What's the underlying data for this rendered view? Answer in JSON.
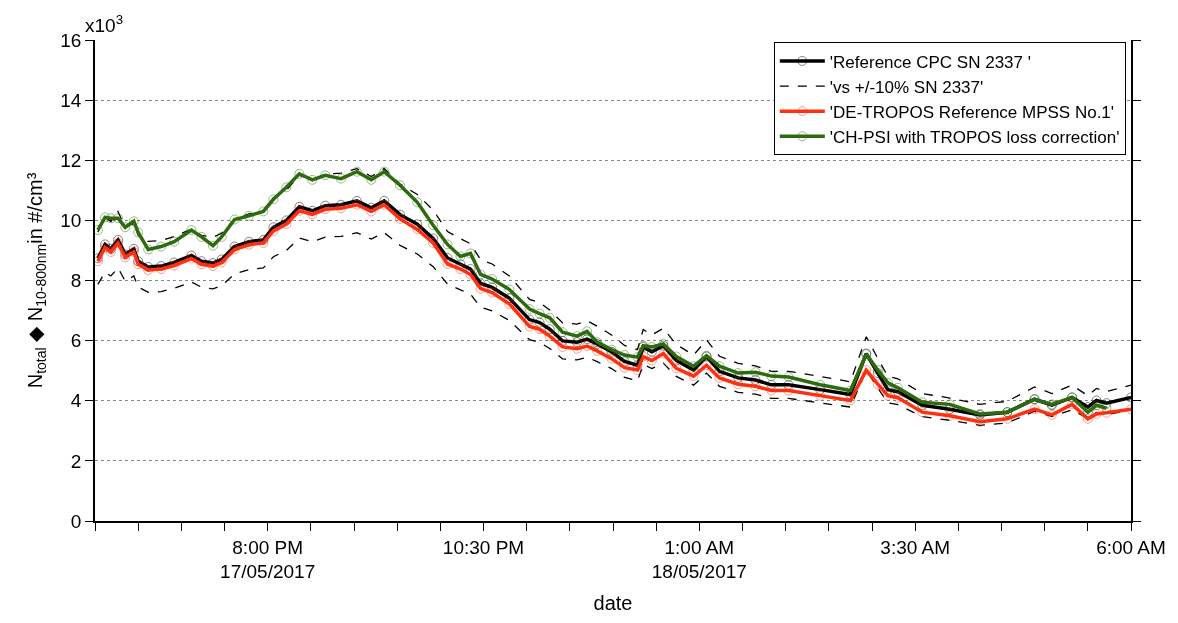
{
  "chart_data": {
    "type": "line",
    "xlabel": "date",
    "ylabel": "N$_{total}$ ◆ N$_{10-800nm}$in #/cm³",
    "x": [
      "2017-05-17T18:02",
      "2017-05-17T18:07",
      "2017-05-17T18:11",
      "2017-05-17T18:16",
      "2017-05-17T18:21",
      "2017-05-17T18:27",
      "2017-05-17T18:30",
      "2017-05-17T18:37",
      "2017-05-17T18:46",
      "2017-05-17T18:55",
      "2017-05-17T19:07",
      "2017-05-17T19:14",
      "2017-05-17T19:22",
      "2017-05-17T19:28",
      "2017-05-17T19:37",
      "2017-05-17T19:47",
      "2017-05-17T19:57",
      "2017-05-17T20:04",
      "2017-05-17T20:13",
      "2017-05-17T20:22",
      "2017-05-17T20:31",
      "2017-05-17T20:40",
      "2017-05-17T20:51",
      "2017-05-17T21:02",
      "2017-05-17T21:12",
      "2017-05-17T21:21",
      "2017-05-17T21:32",
      "2017-05-17T21:44",
      "2017-05-17T21:55",
      "2017-05-17T22:05",
      "2017-05-17T22:14",
      "2017-05-17T22:21",
      "2017-05-17T22:28",
      "2017-05-17T22:36",
      "2017-05-17T22:48",
      "2017-05-17T23:02",
      "2017-05-17T23:09",
      "2017-05-17T23:16",
      "2017-05-17T23:25",
      "2017-05-17T23:35",
      "2017-05-17T23:42",
      "2017-05-17T23:49",
      "2017-05-17T23:59",
      "2017-05-18T00:08",
      "2017-05-18T00:17",
      "2017-05-18T00:21",
      "2017-05-18T00:27",
      "2017-05-18T00:35",
      "2017-05-18T00:44",
      "2017-05-18T00:56",
      "2017-05-18T01:05",
      "2017-05-18T01:14",
      "2017-05-18T01:27",
      "2017-05-18T01:39",
      "2017-05-18T01:50",
      "2017-05-18T02:02",
      "2017-05-18T02:24",
      "2017-05-18T02:45",
      "2017-05-18T02:56",
      "2017-05-18T03:04",
      "2017-05-18T03:11",
      "2017-05-18T03:18",
      "2017-05-18T03:35",
      "2017-05-18T03:54",
      "2017-05-18T04:15",
      "2017-05-18T04:34",
      "2017-05-18T04:53",
      "2017-05-18T05:05",
      "2017-05-18T05:19",
      "2017-05-18T05:30",
      "2017-05-18T05:36",
      "2017-05-18T05:43",
      "2017-05-18T06:00"
    ],
    "series": [
      {
        "name": "'Reference CPC SN 2337 '",
        "color": "#000000",
        "line_style": "solid",
        "marker": "circle",
        "values": [
          8.74,
          9.2,
          9.05,
          9.35,
          8.87,
          9.05,
          8.64,
          8.45,
          8.48,
          8.6,
          8.83,
          8.64,
          8.58,
          8.7,
          9.13,
          9.29,
          9.35,
          9.77,
          10.0,
          10.45,
          10.32,
          10.49,
          10.52,
          10.65,
          10.42,
          10.65,
          10.19,
          9.87,
          9.4,
          8.75,
          8.54,
          8.38,
          7.9,
          7.77,
          7.41,
          6.7,
          6.6,
          6.38,
          5.99,
          5.95,
          6.05,
          5.89,
          5.63,
          5.31,
          5.18,
          5.79,
          5.63,
          5.83,
          5.34,
          5.02,
          5.47,
          4.98,
          4.76,
          4.69,
          4.53,
          4.53,
          4.37,
          4.21,
          5.57,
          4.92,
          4.37,
          4.3,
          3.85,
          3.72,
          3.53,
          3.62,
          4.05,
          3.85,
          4.11,
          3.79,
          4.01,
          3.92,
          4.11
        ]
      },
      {
        "name": "'vs +/-10% SN 2337'",
        "color": "#000000",
        "line_style": "dashed",
        "marker": "none",
        "values": [
          9.61,
          10.12,
          9.96,
          10.29,
          9.76,
          9.96,
          9.5,
          9.3,
          9.33,
          9.46,
          9.71,
          9.5,
          9.44,
          9.57,
          10.04,
          10.22,
          10.29,
          10.75,
          11.0,
          11.5,
          11.35,
          11.54,
          11.57,
          11.72,
          11.46,
          11.72,
          11.21,
          10.86,
          10.34,
          9.63,
          9.39,
          9.22,
          8.69,
          8.55,
          8.15,
          7.37,
          7.26,
          7.02,
          6.59,
          6.55,
          6.66,
          6.48,
          6.19,
          5.84,
          5.7,
          6.37,
          6.19,
          6.41,
          5.87,
          5.52,
          6.02,
          5.48,
          5.24,
          5.16,
          4.98,
          4.98,
          4.81,
          4.63,
          6.13,
          5.41,
          4.81,
          4.73,
          4.24,
          4.09,
          3.88,
          3.98,
          4.46,
          4.24,
          4.52,
          4.17,
          4.41,
          4.31,
          4.52
        ]
      },
      {
        "color": "#000000",
        "line_style": "dashed",
        "marker": "none",
        "values": [
          7.87,
          8.28,
          8.15,
          8.42,
          7.98,
          8.15,
          7.78,
          7.61,
          7.63,
          7.74,
          7.95,
          7.78,
          7.72,
          7.83,
          8.22,
          8.36,
          8.42,
          8.79,
          9.0,
          9.41,
          9.29,
          9.44,
          9.47,
          9.59,
          9.38,
          9.59,
          9.17,
          8.88,
          8.46,
          7.88,
          7.69,
          7.54,
          7.11,
          6.99,
          6.67,
          6.03,
          5.94,
          5.74,
          5.39,
          5.36,
          5.45,
          5.3,
          5.07,
          4.78,
          4.66,
          5.21,
          5.07,
          5.25,
          4.81,
          4.52,
          4.92,
          4.48,
          4.28,
          4.22,
          4.08,
          4.08,
          3.93,
          3.79,
          5.01,
          4.43,
          3.93,
          3.87,
          3.47,
          3.35,
          3.18,
          3.26,
          3.65,
          3.47,
          3.7,
          3.41,
          3.61,
          3.53,
          3.7
        ]
      },
      {
        "name": "'DE-TROPOS Reference MPSS No.1'",
        "color": "#ff3010",
        "line_style": "solid",
        "marker": "circle",
        "values": [
          8.64,
          9.1,
          8.95,
          9.25,
          8.77,
          8.95,
          8.54,
          8.35,
          8.38,
          8.5,
          8.73,
          8.54,
          8.48,
          8.6,
          9.03,
          9.19,
          9.25,
          9.65,
          9.88,
          10.32,
          10.2,
          10.37,
          10.4,
          10.52,
          10.3,
          10.52,
          10.05,
          9.7,
          9.25,
          8.55,
          8.38,
          8.2,
          7.73,
          7.6,
          7.22,
          6.47,
          6.38,
          6.15,
          5.79,
          5.73,
          5.82,
          5.66,
          5.4,
          5.1,
          5.02,
          5.47,
          5.34,
          5.57,
          5.08,
          4.82,
          5.18,
          4.76,
          4.55,
          4.48,
          4.34,
          4.34,
          4.17,
          4.01,
          5.02,
          4.55,
          4.17,
          4.1,
          3.62,
          3.5,
          3.3,
          3.4,
          3.72,
          3.53,
          3.88,
          3.4,
          3.56,
          3.6,
          3.72
        ]
      },
      {
        "name": "'CH-PSI with TROPOS loss correction'",
        "color": "#2e6b0e",
        "line_style": "solid",
        "marker": "circle",
        "values": [
          9.68,
          10.1,
          10.07,
          10.07,
          9.77,
          9.97,
          9.6,
          9.03,
          9.13,
          9.29,
          9.68,
          9.45,
          9.16,
          9.45,
          10.03,
          10.15,
          10.3,
          10.7,
          11.1,
          11.55,
          11.35,
          11.5,
          11.39,
          11.62,
          11.35,
          11.62,
          11.17,
          10.6,
          9.84,
          9.2,
          8.8,
          8.9,
          8.2,
          8.05,
          7.7,
          7.05,
          6.9,
          6.76,
          6.28,
          6.15,
          6.31,
          5.95,
          5.7,
          5.52,
          5.45,
          5.83,
          5.79,
          5.89,
          5.47,
          5.15,
          5.5,
          5.15,
          4.92,
          4.95,
          4.82,
          4.79,
          4.53,
          4.34,
          5.55,
          5.02,
          4.6,
          4.43,
          3.95,
          3.88,
          3.56,
          3.62,
          4.05,
          3.88,
          4.11,
          3.62,
          3.85,
          3.75,
          null
        ]
      }
    ],
    "xlim": [
      "2017-05-17T18:00",
      "2017-05-18T06:00"
    ],
    "xticks": [
      {
        "value": "2017-05-17T18:00",
        "label": null
      },
      {
        "value": "2017-05-17T18:30",
        "label": null
      },
      {
        "value": "2017-05-17T19:00",
        "label": null
      },
      {
        "value": "2017-05-17T19:30",
        "label": null
      },
      {
        "value": "2017-05-17T20:00",
        "label": "8:00 PM\n17/05/2017"
      },
      {
        "value": "2017-05-17T20:30",
        "label": null
      },
      {
        "value": "2017-05-17T21:00",
        "label": null
      },
      {
        "value": "2017-05-17T21:30",
        "label": null
      },
      {
        "value": "2017-05-17T22:00",
        "label": null
      },
      {
        "value": "2017-05-17T22:30",
        "label": "10:30 PM"
      },
      {
        "value": "2017-05-17T23:00",
        "label": null
      },
      {
        "value": "2017-05-17T23:30",
        "label": null
      },
      {
        "value": "2017-05-18T00:00",
        "label": null
      },
      {
        "value": "2017-05-18T00:30",
        "label": null
      },
      {
        "value": "2017-05-18T01:00",
        "label": "1:00 AM\n18/05/2017"
      },
      {
        "value": "2017-05-18T01:30",
        "label": null
      },
      {
        "value": "2017-05-18T02:00",
        "label": null
      },
      {
        "value": "2017-05-18T02:30",
        "label": null
      },
      {
        "value": "2017-05-18T03:00",
        "label": null
      },
      {
        "value": "2017-05-18T03:30",
        "label": "3:30 AM"
      },
      {
        "value": "2017-05-18T04:00",
        "label": null
      },
      {
        "value": "2017-05-18T04:30",
        "label": null
      },
      {
        "value": "2017-05-18T05:00",
        "label": null
      },
      {
        "value": "2017-05-18T05:30",
        "label": null
      },
      {
        "value": "2017-05-18T06:00",
        "label": "6:00 AM"
      }
    ],
    "ylim": [
      0,
      16
    ],
    "yticks": [
      0,
      2,
      4,
      6,
      8,
      10,
      12,
      14,
      16
    ],
    "annotations": [
      "x10$^{3}$"
    ],
    "grid": "y",
    "legend": "top right"
  }
}
